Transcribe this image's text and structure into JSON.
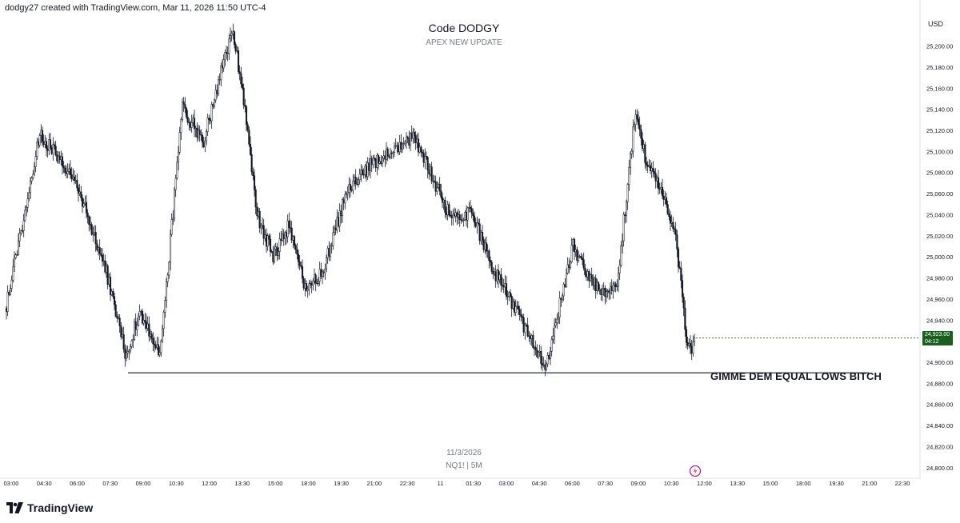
{
  "header": {
    "credit": "dodgy27 created with TradingView.com, Mar 11, 2026 11:50 UTC-4"
  },
  "chart_data": {
    "type": "candlestick",
    "title": "Code DODGY",
    "subtitle": "APEX NEW UPDATE",
    "watermark_date": "11/3/2026",
    "watermark_symbol": "NQ1! | 5M",
    "currency": "USD",
    "ylim": [
      24790,
      25230
    ],
    "y_ticks": [
      {
        "value": 25200,
        "label": "25,200.00"
      },
      {
        "value": 25180,
        "label": "25,180.00"
      },
      {
        "value": 25160,
        "label": "25,160.00"
      },
      {
        "value": 25140,
        "label": "25,140.00"
      },
      {
        "value": 25120,
        "label": "25,120.00"
      },
      {
        "value": 25100,
        "label": "25,100.00"
      },
      {
        "value": 25080,
        "label": "25,080.00"
      },
      {
        "value": 25060,
        "label": "25,060.00"
      },
      {
        "value": 25040,
        "label": "25,040.00"
      },
      {
        "value": 25020,
        "label": "25,020.00"
      },
      {
        "value": 25000,
        "label": "25,000.00"
      },
      {
        "value": 24980,
        "label": "24,980.00"
      },
      {
        "value": 24960,
        "label": "24,960.00"
      },
      {
        "value": 24940,
        "label": "24,940.00"
      },
      {
        "value": 24900,
        "label": "24,900.00"
      },
      {
        "value": 24880,
        "label": "24,880.00"
      },
      {
        "value": 24860,
        "label": "24,860.00"
      },
      {
        "value": 24840,
        "label": "24,840.00"
      },
      {
        "value": 24820,
        "label": "24,820.00"
      },
      {
        "value": 24800,
        "label": "24,800.00"
      }
    ],
    "x_ticks": [
      "03:00",
      "04:30",
      "06:00",
      "07:30",
      "09:00",
      "10:30",
      "12:00",
      "13:30",
      "15:00",
      "18:00",
      "19:30",
      "21:00",
      "22:30",
      "11",
      "01:30",
      "03:00",
      "04:30",
      "06:00",
      "07:30",
      "09:00",
      "10:30",
      "12:00",
      "13:30",
      "15:00",
      "18:00",
      "19:30",
      "21:00",
      "22:30"
    ],
    "last_price": {
      "value": 24923,
      "label": "24,923.00",
      "countdown": "04:12"
    },
    "anchors": [
      [
        0,
        24955
      ],
      [
        25,
        25115
      ],
      [
        40,
        25095
      ],
      [
        55,
        25060
      ],
      [
        75,
        24985
      ],
      [
        90,
        24905
      ],
      [
        100,
        24950
      ],
      [
        115,
        24905
      ],
      [
        132,
        25140
      ],
      [
        148,
        25110
      ],
      [
        160,
        25170
      ],
      [
        170,
        25215
      ],
      [
        178,
        25150
      ],
      [
        188,
        25040
      ],
      [
        200,
        25000
      ],
      [
        212,
        25030
      ],
      [
        225,
        24965
      ],
      [
        238,
        24990
      ],
      [
        255,
        25060
      ],
      [
        275,
        25090
      ],
      [
        292,
        25100
      ],
      [
        306,
        25115
      ],
      [
        318,
        25080
      ],
      [
        332,
        25040
      ],
      [
        350,
        25040
      ],
      [
        362,
        24995
      ],
      [
        378,
        24960
      ],
      [
        392,
        24925
      ],
      [
        405,
        24895
      ],
      [
        415,
        24955
      ],
      [
        425,
        25010
      ],
      [
        435,
        24985
      ],
      [
        445,
        24965
      ],
      [
        458,
        24975
      ],
      [
        472,
        25140
      ],
      [
        480,
        25090
      ],
      [
        492,
        25060
      ],
      [
        502,
        25020
      ],
      [
        510,
        24925
      ],
      [
        516,
        24910
      ]
    ],
    "equal_lows_level": 24890,
    "annotation": "GIMME DEM EQUAL LOWS BITCH"
  },
  "branding": {
    "logo_text": "TradingView"
  },
  "colors": {
    "candle": "#131722",
    "badge": "#1b5e20",
    "grid_text": "#131722",
    "muted": "#787b86"
  }
}
